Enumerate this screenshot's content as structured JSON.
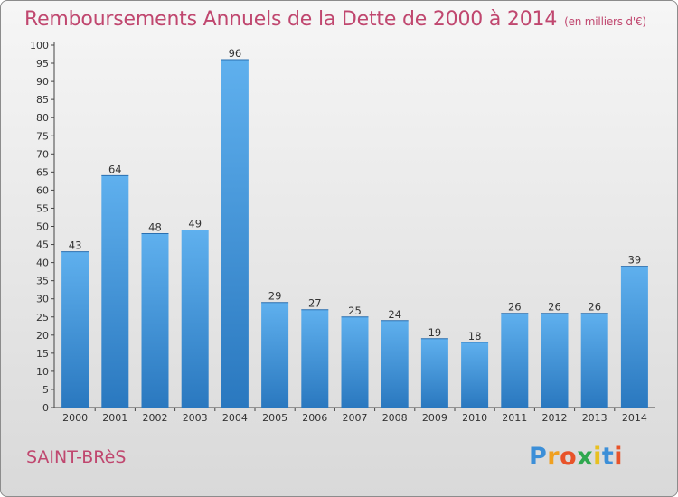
{
  "title": "Remboursements Annuels de la Dette de 2000 à 2014",
  "subtitle": "(en milliers d'€)",
  "place": "SAINT-BRèS",
  "logo": {
    "letters": [
      "P",
      "r",
      "o",
      "x",
      "i",
      "t",
      "i"
    ],
    "colors": [
      "#3c8fd8",
      "#f0a020",
      "#e8532a",
      "#2fa84f",
      "#e8c020",
      "#3c8fd8",
      "#e8532a"
    ]
  },
  "colors": {
    "bar": "#3b8fd9",
    "title": "#c0476f"
  },
  "chart_data": {
    "type": "bar",
    "categories": [
      "2000",
      "2001",
      "2002",
      "2003",
      "2004",
      "2005",
      "2006",
      "2007",
      "2008",
      "2009",
      "2010",
      "2011",
      "2012",
      "2013",
      "2014"
    ],
    "values": [
      43,
      64,
      48,
      49,
      96,
      29,
      27,
      25,
      24,
      19,
      18,
      26,
      26,
      26,
      39
    ],
    "title": "Remboursements Annuels de la Dette de 2000 à 2014",
    "subtitle": "(en milliers d'€)",
    "ylim": [
      0,
      100
    ],
    "yticks": [
      0,
      5,
      10,
      15,
      20,
      25,
      30,
      35,
      40,
      45,
      50,
      55,
      60,
      65,
      70,
      75,
      80,
      85,
      90,
      95,
      100
    ],
    "grid": false,
    "data_labels": true
  }
}
